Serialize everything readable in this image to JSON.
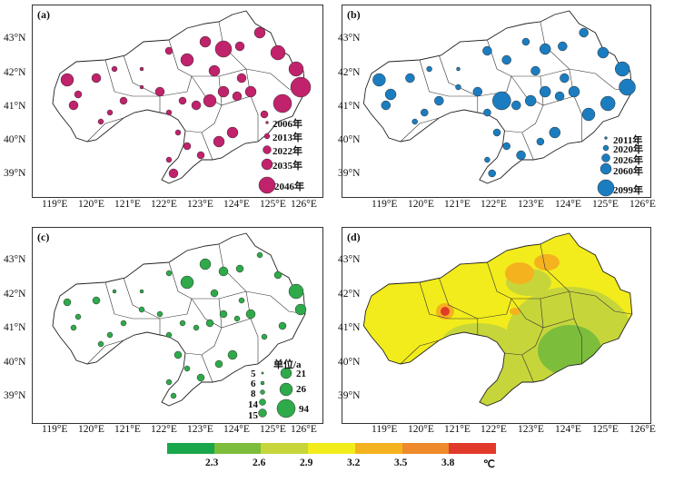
{
  "panels": {
    "a": {
      "label": "(a)",
      "legend": [
        "2006年",
        "2013年",
        "2022年",
        "2035年",
        "2046年"
      ]
    },
    "b": {
      "label": "(b)",
      "legend": [
        "2011年",
        "2020年",
        "2026年",
        "2060年",
        "2099年"
      ]
    },
    "c": {
      "label": "(c)",
      "legend_title": "单位/a",
      "legend_left": [
        "5",
        "6",
        "8",
        "14",
        "15"
      ],
      "legend_right": [
        "21",
        "26",
        "94"
      ]
    },
    "d": {
      "label": "(d)"
    }
  },
  "axes": {
    "lon_ticks": [
      "119°E",
      "120°E",
      "121°E",
      "122°E",
      "123°E",
      "124°E",
      "125°E",
      "126°E"
    ],
    "lat_ticks": [
      "43°N",
      "42°N",
      "41°N",
      "40°N",
      "39°N"
    ]
  },
  "colorbar": {
    "colors": [
      "#1aa64a",
      "#7cbd3c",
      "#c6d63a",
      "#f2ec1c",
      "#f5b21f",
      "#ee8a2a",
      "#e23a2a"
    ],
    "ticks": [
      "2.3",
      "2.6",
      "2.9",
      "3.2",
      "3.5",
      "3.8",
      "℃"
    ]
  },
  "colors": {
    "panel_a": "#c0226b",
    "panel_b": "#1b7dbf",
    "panel_c": "#2eaa4a"
  }
}
